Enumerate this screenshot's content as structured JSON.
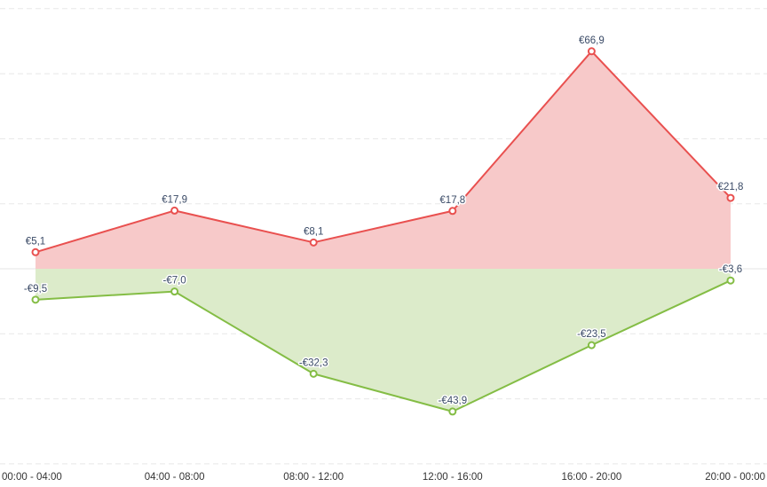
{
  "chart_data": {
    "type": "area",
    "categories": [
      "00:00 - 04:00",
      "04:00 - 08:00",
      "08:00 - 12:00",
      "12:00 - 16:00",
      "16:00 - 20:00",
      "20:00 - 00:00"
    ],
    "series": [
      {
        "values": [
          5.1,
          17.9,
          8.1,
          17.8,
          66.9,
          21.8
        ],
        "labels": [
          "€5,1",
          "€17,9",
          "€8,1",
          "€17,8",
          "€66,9",
          "€21,8"
        ],
        "line_color": "#e9504f",
        "fill_color": "#f7c9c9"
      },
      {
        "values": [
          -9.5,
          -7.0,
          -32.3,
          -43.9,
          -23.5,
          -3.6
        ],
        "labels": [
          "-€9,5",
          "-€7,0",
          "-€32,3",
          "-€43,9",
          "-€23,5",
          "-€3,6"
        ],
        "line_color": "#84bd45",
        "fill_color": "#dcebca"
      }
    ],
    "ylim": [
      -60,
      80
    ],
    "y_grid_step": 20,
    "grid": true,
    "y_tick_labels_shown": false,
    "title": "",
    "xlabel": "",
    "ylabel": ""
  }
}
